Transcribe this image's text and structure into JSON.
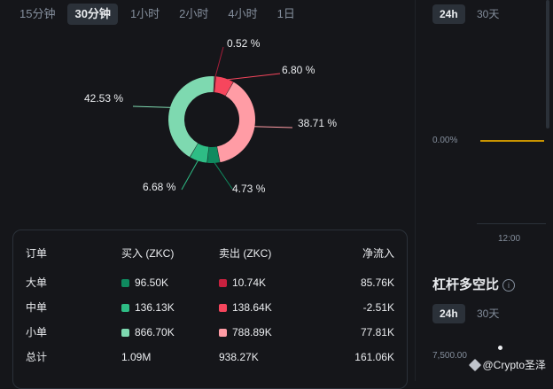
{
  "timeframes": [
    "15分钟",
    "30分钟",
    "1小时",
    "2小时",
    "4小时",
    "1日"
  ],
  "timeframe_active": 1,
  "donut": {
    "segments": [
      {
        "pct": 0.52,
        "label": "0.52 %",
        "color": "#a51e3a"
      },
      {
        "pct": 6.8,
        "label": "6.80 %",
        "color": "#f6465d"
      },
      {
        "pct": 38.71,
        "label": "38.71 %",
        "color": "#ff9ca5"
      },
      {
        "pct": 4.73,
        "label": "4.73 %",
        "color": "#0f8a5f"
      },
      {
        "pct": 6.68,
        "label": "6.68 %",
        "color": "#2ebd85"
      },
      {
        "pct": 42.53,
        "label": "42.53 %",
        "color": "#7ed9b0"
      }
    ]
  },
  "table": {
    "headers": [
      "订单",
      "买入 (ZKC)",
      "卖出 (ZKC)",
      "净流入"
    ],
    "rows": [
      {
        "label": "大单",
        "buy": "96.50K",
        "buy_color": "#0f8a5f",
        "sell": "10.74K",
        "sell_color": "#c8213f",
        "net": "85.76K"
      },
      {
        "label": "中单",
        "buy": "136.13K",
        "buy_color": "#2ebd85",
        "sell": "138.64K",
        "sell_color": "#f6465d",
        "net": "-2.51K"
      },
      {
        "label": "小单",
        "buy": "866.70K",
        "buy_color": "#7ed9b0",
        "sell": "788.89K",
        "sell_color": "#ff9ca5",
        "net": "77.81K"
      }
    ],
    "total": {
      "label": "总计",
      "buy": "1.09M",
      "sell": "938.27K",
      "net": "161.06K"
    }
  },
  "right_panel": {
    "range_tabs": [
      "24h",
      "30天"
    ],
    "y_label": "0.00%",
    "x_label": "12:00",
    "section_title": "杠杆多空比",
    "info_icon": "info-icon",
    "range_tabs_2": [
      "24h",
      "30天"
    ],
    "y_label_2": "7,500.00"
  },
  "watermark": "@Crypto圣泽",
  "colors": {
    "accent": "#c99400",
    "background": "#15161a"
  }
}
